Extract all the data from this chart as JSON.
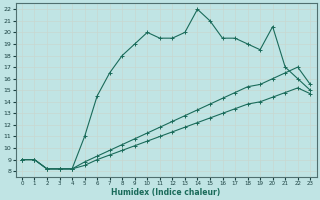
{
  "xlabel": "Humidex (Indice chaleur)",
  "background_color": "#c0e4e4",
  "grid_color": "#b0d0d0",
  "line_color": "#1a6b5a",
  "xlim": [
    -0.5,
    23.5
  ],
  "ylim": [
    7.5,
    22.5
  ],
  "xticks": [
    0,
    1,
    2,
    3,
    4,
    5,
    6,
    7,
    8,
    9,
    10,
    11,
    12,
    13,
    14,
    15,
    16,
    17,
    18,
    19,
    20,
    21,
    22,
    23
  ],
  "yticks": [
    8,
    9,
    10,
    11,
    12,
    13,
    14,
    15,
    16,
    17,
    18,
    19,
    20,
    21,
    22
  ],
  "line1_x": [
    0,
    1,
    2,
    3,
    4,
    5,
    6,
    7,
    8,
    9,
    10,
    11,
    12,
    13,
    14,
    15,
    16,
    17,
    18,
    19,
    20,
    21,
    22,
    23
  ],
  "line1_y": [
    9,
    9,
    8.2,
    8.2,
    8.2,
    11,
    14.5,
    16.5,
    18,
    19,
    20,
    19.5,
    19.5,
    20,
    22,
    21,
    19.5,
    19.5,
    19,
    18.5,
    20.5,
    17,
    16,
    15
  ],
  "line2_x": [
    0,
    1,
    2,
    3,
    4,
    5,
    6,
    7,
    8,
    9,
    10,
    11,
    12,
    13,
    14,
    15,
    16,
    17,
    18,
    19,
    20,
    21,
    22,
    23
  ],
  "line2_y": [
    9,
    9,
    8.2,
    8.2,
    8.2,
    8.8,
    9.3,
    9.8,
    10.3,
    10.8,
    11.3,
    11.8,
    12.3,
    12.8,
    13.3,
    13.8,
    14.3,
    14.8,
    15.3,
    15.5,
    16.0,
    16.5,
    17.0,
    15.5
  ],
  "line3_x": [
    0,
    1,
    2,
    3,
    4,
    5,
    6,
    7,
    8,
    9,
    10,
    11,
    12,
    13,
    14,
    15,
    16,
    17,
    18,
    19,
    20,
    21,
    22,
    23
  ],
  "line3_y": [
    9,
    9,
    8.2,
    8.2,
    8.2,
    8.5,
    9.0,
    9.4,
    9.8,
    10.2,
    10.6,
    11.0,
    11.4,
    11.8,
    12.2,
    12.6,
    13.0,
    13.4,
    13.8,
    14.0,
    14.4,
    14.8,
    15.2,
    14.7
  ]
}
